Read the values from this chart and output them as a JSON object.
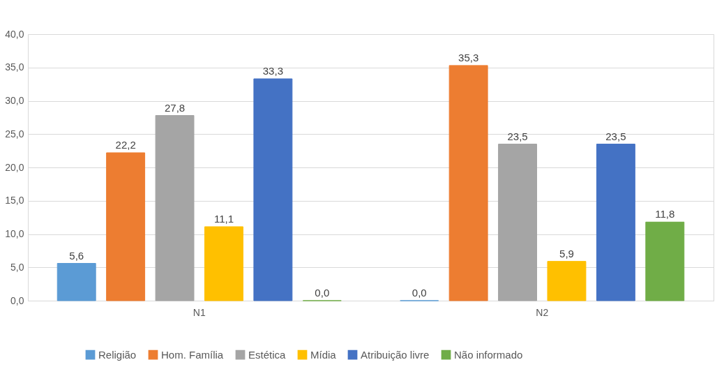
{
  "chart_data": {
    "type": "bar",
    "categories": [
      "N1",
      "N2"
    ],
    "series": [
      {
        "name": "Religião",
        "color": "#5b9bd5",
        "values": [
          5.6,
          0.0
        ],
        "value_labels": [
          "5,6",
          "0,0"
        ]
      },
      {
        "name": "Hom. Família",
        "color": "#ed7d31",
        "values": [
          22.2,
          35.3
        ],
        "value_labels": [
          "22,2",
          "35,3"
        ]
      },
      {
        "name": "Estética",
        "color": "#a5a5a5",
        "values": [
          27.8,
          23.5
        ],
        "value_labels": [
          "27,8",
          "23,5"
        ]
      },
      {
        "name": "Mídia",
        "color": "#ffc000",
        "values": [
          11.1,
          5.9
        ],
        "value_labels": [
          "11,1",
          "5,9"
        ]
      },
      {
        "name": "Atribuição livre",
        "color": "#4472c4",
        "values": [
          33.3,
          23.5
        ],
        "value_labels": [
          "33,3",
          "23,5"
        ]
      },
      {
        "name": "Não informado",
        "color": "#70ad47",
        "values": [
          0.0,
          11.8
        ],
        "value_labels": [
          "0,0",
          "11,8"
        ]
      }
    ],
    "ylim": [
      0,
      40
    ],
    "yticks": [
      {
        "value": 0,
        "label": "0,0"
      },
      {
        "value": 5,
        "label": "5,0"
      },
      {
        "value": 10,
        "label": "10,0"
      },
      {
        "value": 15,
        "label": "15,0"
      },
      {
        "value": 20,
        "label": "20,0"
      },
      {
        "value": 25,
        "label": "25,0"
      },
      {
        "value": 30,
        "label": "30,0"
      },
      {
        "value": 35,
        "label": "35,0"
      },
      {
        "value": 40,
        "label": "40,0"
      }
    ],
    "grid": "y",
    "legend": "bottom"
  }
}
